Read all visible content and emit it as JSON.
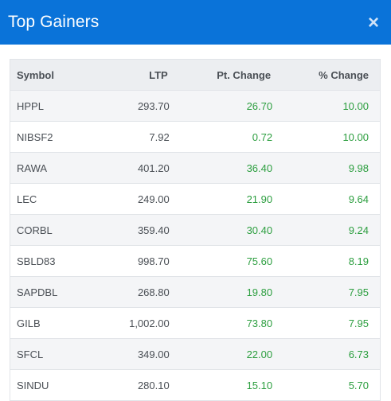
{
  "dialog": {
    "title": "Top Gainers",
    "close_symbol": "×"
  },
  "table": {
    "headers": {
      "symbol": "Symbol",
      "ltp": "LTP",
      "pt_change": "Pt. Change",
      "pct_change": "% Change"
    },
    "rows": [
      {
        "symbol": "HPPL",
        "ltp": "293.70",
        "pt_change": "26.70",
        "pct_change": "10.00"
      },
      {
        "symbol": "NIBSF2",
        "ltp": "7.92",
        "pt_change": "0.72",
        "pct_change": "10.00"
      },
      {
        "symbol": "RAWA",
        "ltp": "401.20",
        "pt_change": "36.40",
        "pct_change": "9.98"
      },
      {
        "symbol": "LEC",
        "ltp": "249.00",
        "pt_change": "21.90",
        "pct_change": "9.64"
      },
      {
        "symbol": "CORBL",
        "ltp": "359.40",
        "pt_change": "30.40",
        "pct_change": "9.24"
      },
      {
        "symbol": "SBLD83",
        "ltp": "998.70",
        "pt_change": "75.60",
        "pct_change": "8.19"
      },
      {
        "symbol": "SAPDBL",
        "ltp": "268.80",
        "pt_change": "19.80",
        "pct_change": "7.95"
      },
      {
        "symbol": "GILB",
        "ltp": "1,002.00",
        "pt_change": "73.80",
        "pct_change": "7.95"
      },
      {
        "symbol": "SFCL",
        "ltp": "349.00",
        "pt_change": "22.00",
        "pct_change": "6.73"
      },
      {
        "symbol": "SINDU",
        "ltp": "280.10",
        "pt_change": "15.10",
        "pct_change": "5.70"
      }
    ]
  },
  "colors": {
    "header_bg": "#0a73d9",
    "gain": "#2c9e3f"
  }
}
